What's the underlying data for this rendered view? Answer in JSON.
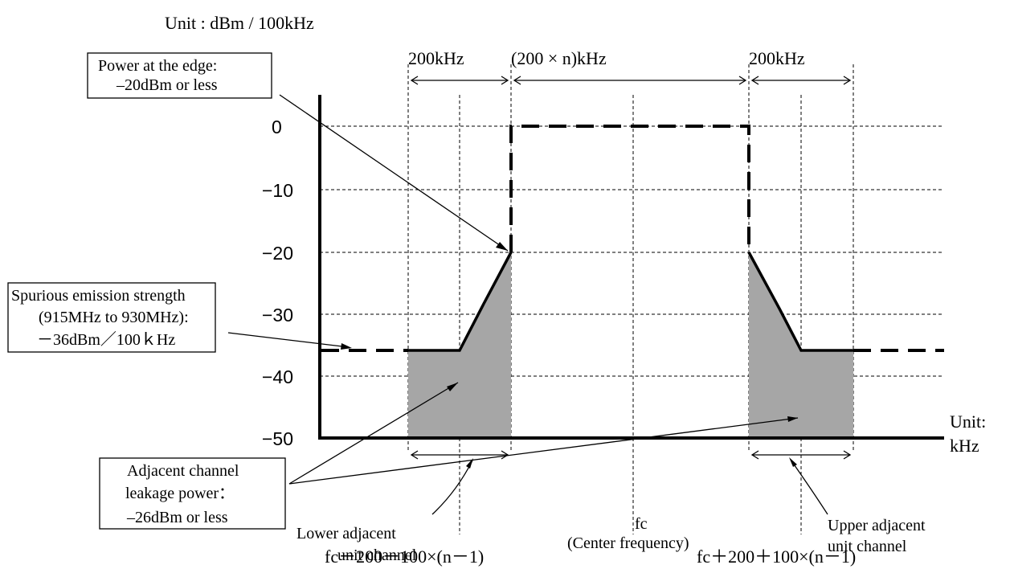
{
  "unit_title": "Unit : dBm / 100kHz",
  "y_ticks": [
    "0",
    "−10",
    "−20",
    "−30",
    "−40",
    "−50"
  ],
  "x_unit": [
    "Unit:",
    "kHz"
  ],
  "widths": {
    "left": "200kHz",
    "center": "(200 × n)kHz",
    "right": "200kHz"
  },
  "callouts": {
    "edge_power": [
      "Power at the edge:",
      "–20dBm or less"
    ],
    "spurious": [
      "Spurious emission strength",
      "(915MHz to 930MHz):",
      "－36dBm／100ｋHz"
    ],
    "aclr": [
      "Adjacent channel",
      "leakage power：",
      "–26dBm or less"
    ]
  },
  "channel_labels": {
    "lower": [
      "Lower adjacent",
      "unit channel"
    ],
    "center": [
      "fc",
      "(Center frequency)"
    ],
    "upper": [
      "Upper adjacent",
      "unit channel"
    ]
  },
  "freq_formulas": {
    "lower": "fc－200－100×(n－1)",
    "upper": "fc＋200＋100×(n－1)"
  },
  "spectrum_mask": {
    "in_band_level_dBm": 0,
    "edge_level_dBm": -20,
    "spurious_level_dBm": -36,
    "floor_dBm": -50,
    "adjacent_channel_leakage_dBm": -26
  },
  "colors": {
    "fill": "#a6a6a6",
    "line": "#000000"
  }
}
